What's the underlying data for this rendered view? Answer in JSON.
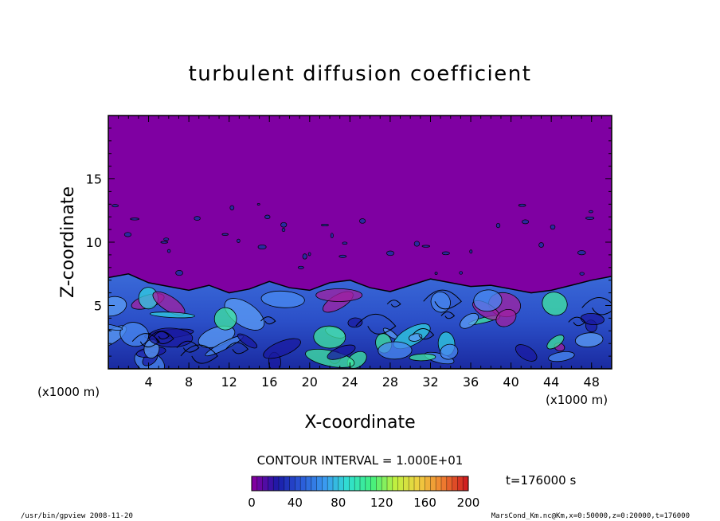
{
  "chart_data": {
    "type": "heatmap",
    "title": "turbulent diffusion coefficient",
    "xlabel": "X-coordinate",
    "ylabel": "Z-coordinate",
    "x_unit": "(x1000 m)",
    "y_unit": "(x1000 m)",
    "xlim": [
      0,
      50
    ],
    "ylim": [
      0,
      20
    ],
    "xticks": [
      "4",
      "8",
      "12",
      "16",
      "20",
      "24",
      "28",
      "32",
      "36",
      "40",
      "44",
      "48"
    ],
    "yticks": [
      "5",
      "10",
      "15"
    ],
    "contour_interval": "CONTOUR INTERVAL = 1.000E+01",
    "time_label": "t=176000 s",
    "colorbar": {
      "ticks": [
        "0",
        "40",
        "80",
        "120",
        "160",
        "200"
      ],
      "range": [
        0,
        200
      ],
      "colors": [
        "#8000a0",
        "#1a1aa8",
        "#2a5ad8",
        "#3a9af0",
        "#30e0d0",
        "#40f080",
        "#c0f040",
        "#f0d040",
        "#f08030",
        "#d02020"
      ]
    },
    "background_color": "#7f00a2",
    "boundary_layer_top_km": [
      7.2,
      7.5,
      6.8,
      6.5,
      6.2,
      6.6,
      6.0,
      6.3,
      6.9,
      6.4,
      6.2,
      6.8,
      7.0,
      6.4,
      6.1,
      6.6,
      7.1,
      6.8,
      6.5,
      6.6,
      6.3,
      6.0,
      6.2,
      6.6,
      7.0,
      7.3
    ]
  },
  "footer": {
    "left": "/usr/bin/gpview   2008-11-20",
    "right": "MarsCond_Km.nc@Km,x=0:50000,z=0:20000,t=176000"
  }
}
